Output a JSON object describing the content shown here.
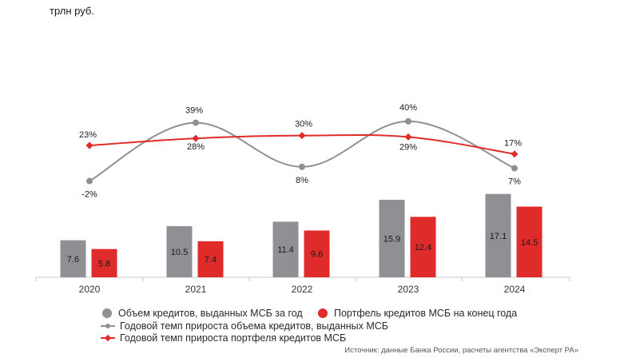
{
  "unit_label": "трлн руб.",
  "source": "Источник: данные Банка России, расчеты агентства «Эксперт РА»",
  "legend": {
    "volume": "Объем кредитов, выданных МСБ за год",
    "portfolio": "Портфель кредитов МСБ на конец года",
    "volume_growth": "Годовой темп прироста объема кредитов, выданных МСБ",
    "portfolio_growth": "Годовой темп прироста портфеля кредитов МСБ"
  },
  "colors": {
    "gray": "#8e9093",
    "red": "#e02b2b",
    "axis": "#c9c9c9"
  },
  "chart_data": {
    "type": "bar",
    "categories": [
      "2020",
      "2021",
      "2022",
      "2023",
      "2024"
    ],
    "series": [
      {
        "name": "Объем кредитов, выданных МСБ за год",
        "kind": "bar",
        "color": "#8e9093",
        "values": [
          7.6,
          10.5,
          11.4,
          15.9,
          17.1
        ],
        "labels": [
          "7.6",
          "10.5",
          "11.4",
          "15.9",
          "17.1"
        ]
      },
      {
        "name": "Портфель кредитов МСБ на конец года",
        "kind": "bar",
        "color": "#e02b2b",
        "values": [
          5.8,
          7.4,
          9.6,
          12.4,
          14.5
        ],
        "labels": [
          "5.8",
          "7.4",
          "9.6",
          "12.4",
          "14.5"
        ]
      },
      {
        "name": "Годовой темп прироста объема кредитов, выданных МСБ",
        "kind": "line",
        "color": "#8e9093",
        "values": [
          -2,
          39,
          8,
          40,
          7
        ],
        "labels": [
          "-2%",
          "39%",
          "8%",
          "40%",
          "7%"
        ]
      },
      {
        "name": "Годовой темп прироста портфеля кредитов МСБ",
        "kind": "line",
        "color": "#e02b2b",
        "values": [
          23,
          28,
          30,
          29,
          17
        ],
        "labels": [
          "23%",
          "28%",
          "30%",
          "29%",
          "17%"
        ]
      }
    ],
    "xlabel": "",
    "ylabel": "",
    "legend_position": "bottom"
  }
}
